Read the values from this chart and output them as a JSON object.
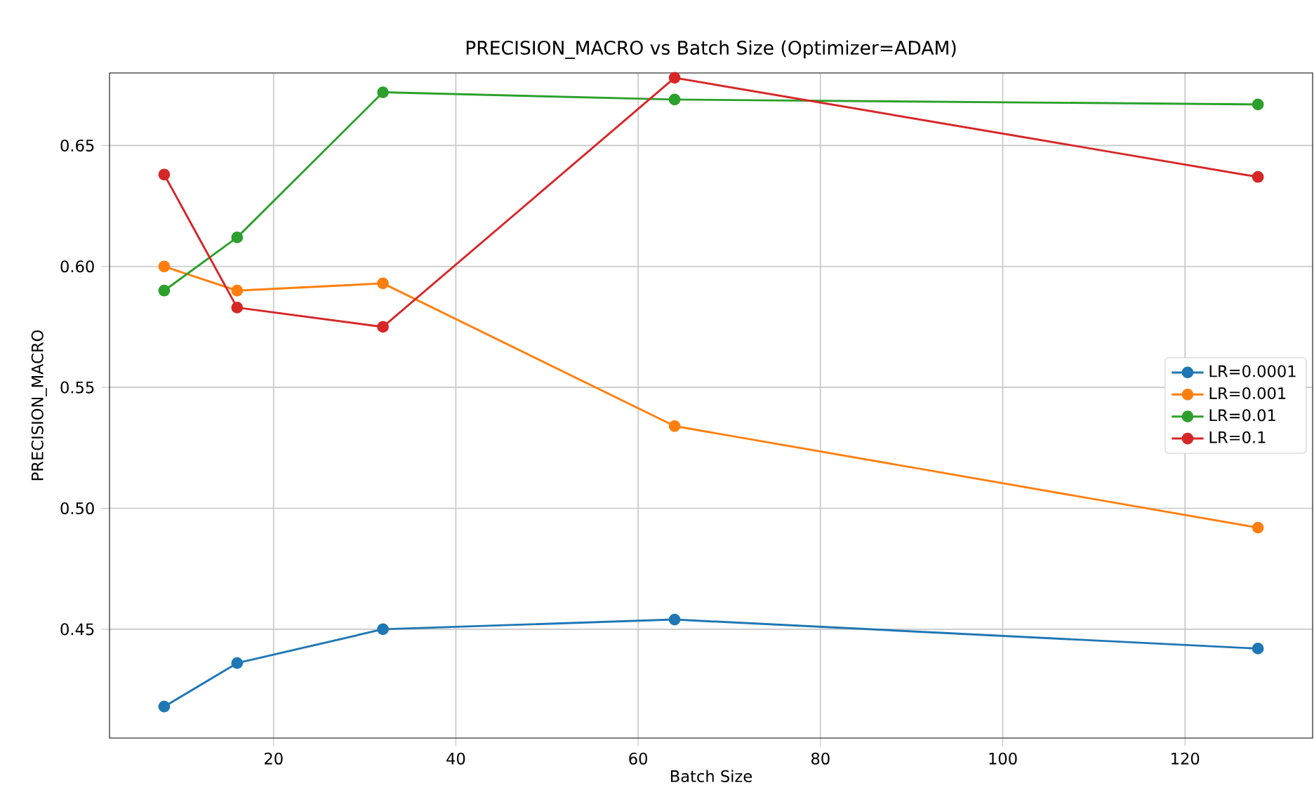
{
  "chart_data": {
    "type": "line",
    "title": "PRECISION_MACRO vs Batch Size (Optimizer=ADAM)",
    "xlabel": "Batch Size",
    "ylabel": "PRECISION_MACRO",
    "x": [
      8,
      16,
      32,
      64,
      128
    ],
    "series": [
      {
        "name": "LR=0.0001",
        "color": "#1f77b4",
        "values": [
          0.418,
          0.436,
          0.45,
          0.454,
          0.442
        ]
      },
      {
        "name": "LR=0.001",
        "color": "#ff7f0e",
        "values": [
          0.6,
          0.59,
          0.593,
          0.534,
          0.492
        ]
      },
      {
        "name": "LR=0.01",
        "color": "#2ca02c",
        "values": [
          0.59,
          0.612,
          0.672,
          0.669,
          0.667
        ]
      },
      {
        "name": "LR=0.1",
        "color": "#d62728",
        "values": [
          0.638,
          0.583,
          0.575,
          0.678,
          0.637
        ]
      }
    ],
    "xlim": [
      2,
      134
    ],
    "xticks": [
      20,
      40,
      60,
      80,
      100,
      120
    ],
    "ylim": [
      0.405,
      0.68
    ],
    "yticks": [
      {
        "value": 0.45,
        "label": "0.45"
      },
      {
        "value": 0.5,
        "label": "0.50"
      },
      {
        "value": 0.55,
        "label": "0.55"
      },
      {
        "value": 0.6,
        "label": "0.60"
      },
      {
        "value": 0.65,
        "label": "0.65"
      }
    ],
    "grid": true,
    "legend": "right",
    "marker": "circle",
    "line_style": "solid"
  }
}
